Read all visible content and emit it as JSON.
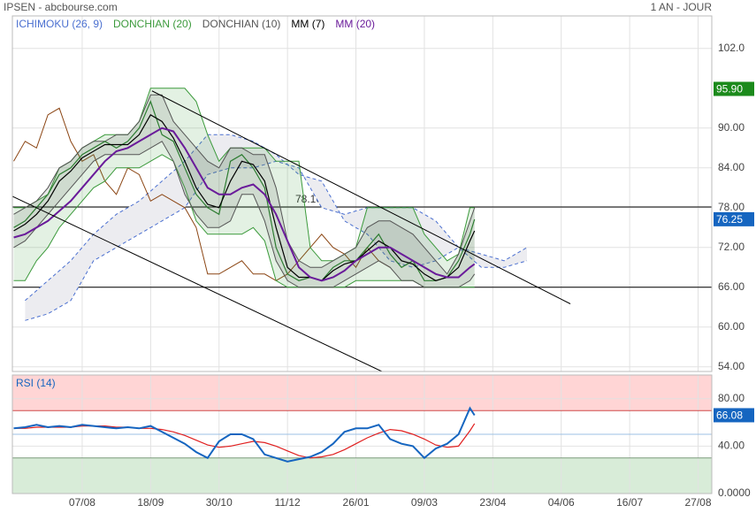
{
  "header": {
    "title": "IPSEN - abcbourse.com",
    "period": "1 AN - JOUR"
  },
  "chart_data": [
    {
      "type": "line",
      "xlim": [
        -30.6,
        276
      ],
      "ylim": [
        53.3,
        106.9
      ],
      "yticks": [
        {
          "value": 54,
          "label": "54.00"
        },
        {
          "value": 60,
          "label": "60.00"
        },
        {
          "value": 66,
          "label": "66.00"
        },
        {
          "value": 72,
          "label": "72.00"
        },
        {
          "value": 78,
          "label": "78.00"
        },
        {
          "value": 84,
          "label": "84.00"
        },
        {
          "value": 90,
          "label": "90.00"
        },
        {
          "value": 102,
          "label": "102.0"
        }
      ],
      "grid": true,
      "x": [
        -30,
        -25,
        -20,
        -15,
        -10,
        -5,
        0,
        5,
        10,
        15,
        20,
        25,
        30,
        35,
        40,
        45,
        50,
        55,
        60,
        65,
        70,
        75,
        80,
        85,
        90,
        95,
        100,
        105,
        110,
        115,
        120,
        125,
        130,
        135,
        140,
        145,
        150,
        155,
        160,
        165,
        170,
        172
      ],
      "series": [
        {
          "name": "ICHIMOKU (26, 9)",
          "kind": "cloud",
          "color": "#4a6fd0",
          "x": [
            -25,
            -15,
            -5,
            5,
            15,
            25,
            35,
            45,
            55,
            65,
            75,
            85,
            95,
            105,
            115,
            125,
            135,
            145,
            155,
            165,
            175,
            185,
            195
          ],
          "span_a": [
            64,
            67,
            70,
            74,
            77,
            79,
            82,
            85,
            89,
            89,
            88,
            86,
            83,
            82,
            76,
            74,
            70,
            69,
            70,
            72,
            71,
            70,
            72
          ],
          "span_b": [
            61,
            62,
            64,
            70,
            72,
            74,
            76,
            78,
            83,
            84,
            84,
            85,
            84,
            78,
            77,
            78,
            78,
            78,
            76,
            72,
            69,
            69,
            70
          ],
          "lagging": {
            "color": "#8b4513",
            "x": [
              -30,
              -25,
              -20,
              -15,
              -10,
              -5,
              0,
              5,
              10,
              15,
              20,
              25,
              30,
              35,
              40,
              45,
              50,
              55,
              60,
              65,
              70,
              75,
              80,
              85,
              90,
              95,
              100,
              105,
              110,
              115,
              120,
              125,
              130,
              135
            ],
            "values": [
              85,
              88,
              87,
              92,
              93,
              88,
              85,
              86,
              82,
              80,
              84,
              83,
              79,
              80,
              79,
              78,
              75,
              68,
              68,
              69,
              70,
              68,
              68,
              67,
              68,
              70,
              72,
              74,
              72,
              71,
              69,
              72,
              70,
              69
            ]
          }
        },
        {
          "name": "DONCHIAN (20)",
          "kind": "band",
          "color": "#3c9a3c",
          "upper": [
            78,
            78,
            79,
            80,
            84,
            85,
            87,
            88,
            89,
            89,
            89,
            91,
            96,
            96,
            96,
            96,
            94,
            89,
            85,
            87,
            87,
            87,
            87,
            85,
            85,
            85,
            72,
            70,
            70,
            71,
            72,
            78,
            78,
            78,
            78,
            78,
            74,
            72,
            70,
            71,
            78,
            78
          ],
          "lower": [
            67,
            67,
            70,
            72,
            75,
            77,
            79,
            81,
            82,
            84,
            84,
            84,
            85,
            86,
            85,
            81,
            76,
            74,
            74,
            74,
            74,
            75,
            73,
            67,
            66,
            66,
            66,
            66,
            66,
            66,
            67,
            67,
            67,
            67,
            67,
            67,
            66,
            66,
            66,
            66,
            66,
            66
          ]
        },
        {
          "name": "DONCHIAN (10)",
          "kind": "band",
          "color": "#555555",
          "upper": [
            77,
            78,
            79,
            81,
            84,
            85,
            87,
            88,
            88,
            89,
            89,
            91,
            95,
            95,
            91,
            89,
            87,
            85,
            84,
            87,
            87,
            86,
            86,
            81,
            73,
            70,
            69,
            69,
            70,
            71,
            72,
            75,
            76,
            76,
            75,
            74,
            72,
            70,
            68,
            71,
            76,
            78
          ],
          "lower": [
            72,
            73,
            75,
            77,
            79,
            81,
            83,
            85,
            86,
            86,
            86,
            86,
            87,
            88,
            85,
            80,
            77,
            75,
            75,
            76,
            80,
            80,
            76,
            70,
            67,
            66,
            66,
            66,
            66,
            67,
            68,
            69,
            70,
            69,
            67,
            67,
            66,
            66,
            66,
            66,
            67,
            68
          ]
        },
        {
          "kind": "line",
          "color": "#2e7d32",
          "values": [
            75,
            76,
            78,
            80,
            83,
            84,
            86,
            87,
            88,
            87,
            88,
            90,
            94,
            89,
            88,
            84,
            80,
            78,
            77,
            85,
            86,
            84,
            81,
            72,
            68,
            67,
            67.5,
            67,
            69,
            70,
            70,
            72,
            74,
            71,
            69,
            70,
            67,
            67,
            67.5,
            70,
            74,
            76.25
          ]
        },
        {
          "name": "MM (7)",
          "kind": "line",
          "color": "#000000",
          "values": [
            74.5,
            75.5,
            77,
            79,
            82,
            83.5,
            85.5,
            86.5,
            87.5,
            87.5,
            87.5,
            89,
            92,
            91,
            88.5,
            85,
            81,
            78.5,
            78,
            82,
            85,
            84.5,
            82,
            75,
            69,
            67.5,
            67.5,
            67,
            68.5,
            69.5,
            70,
            71.5,
            73,
            72,
            70,
            69.5,
            68,
            67,
            67.5,
            69,
            73,
            74.5
          ]
        },
        {
          "name": "MM (20)",
          "kind": "line",
          "color": "#6a1b9a",
          "width": 2,
          "values": [
            73.5,
            74,
            75,
            76,
            77.5,
            79,
            81,
            83,
            85,
            86.5,
            87,
            88,
            89,
            90,
            89.5,
            87,
            84,
            81,
            80,
            80,
            81,
            81.5,
            80,
            77,
            73,
            69,
            67.5,
            67,
            67.5,
            68.5,
            70,
            71,
            72,
            72,
            71,
            70,
            69,
            68,
            67.5,
            67.5,
            69,
            69.5
          ]
        }
      ],
      "hlines": [
        {
          "value": 78.1,
          "label": "78.10"
        },
        {
          "value": 66
        }
      ],
      "trendlines": [
        {
          "x": [
            30.6,
            214
          ],
          "y": [
            95.6,
            63.5
          ]
        },
        {
          "x": [
            -30.6,
            131.4
          ],
          "y": [
            79.7,
            53.3
          ]
        }
      ],
      "markers": [
        {
          "value": 95.9,
          "label": "95.90",
          "color": "#1b8a1b"
        },
        {
          "value": 76.25,
          "color": "#1565c0"
        }
      ]
    },
    {
      "type": "line",
      "xlim": [
        -30.6,
        276
      ],
      "ylim": [
        0,
        100
      ],
      "xticks": [
        {
          "value": 0,
          "label": "07/08"
        },
        {
          "value": 30,
          "label": "18/09"
        },
        {
          "value": 60,
          "label": "30/10"
        },
        {
          "value": 90,
          "label": "11/12"
        },
        {
          "value": 120,
          "label": "26/01"
        },
        {
          "value": 150,
          "label": "09/03"
        },
        {
          "value": 180,
          "label": "23/04"
        },
        {
          "value": 210,
          "label": "04/06"
        },
        {
          "value": 240,
          "label": "16/07"
        },
        {
          "value": 270,
          "label": "27/08"
        }
      ],
      "yticks": [
        {
          "value": 0,
          "label": "0.0000"
        },
        {
          "value": 40,
          "label": "40.00"
        },
        {
          "value": 80,
          "label": "80.00"
        }
      ],
      "grid": true,
      "x": [
        -30,
        -25,
        -20,
        -15,
        -10,
        -5,
        0,
        5,
        10,
        15,
        20,
        25,
        30,
        35,
        40,
        45,
        50,
        55,
        60,
        65,
        70,
        75,
        80,
        85,
        90,
        95,
        100,
        105,
        110,
        115,
        120,
        125,
        130,
        135,
        140,
        145,
        150,
        155,
        160,
        165,
        170,
        172
      ],
      "zones": [
        {
          "from": 70,
          "to": 100,
          "color": "#ffd5d5"
        },
        {
          "from": 0,
          "to": 30,
          "color": "#d8ecd8"
        }
      ],
      "hlines": [
        {
          "value": 70,
          "color": "#d04848"
        },
        {
          "value": 50,
          "color": "#9cc0e4"
        },
        {
          "value": 30,
          "color": "#7a9a7a"
        }
      ],
      "series": [
        {
          "kind": "line",
          "color": "#e02020",
          "values": [
            55,
            55,
            56,
            56,
            56,
            56,
            57,
            57,
            57,
            56,
            56,
            55,
            55,
            54,
            52,
            49,
            45,
            41,
            39,
            40,
            42,
            44,
            43,
            40,
            36,
            32,
            30,
            31,
            33,
            37,
            42,
            47,
            51,
            54,
            53,
            50,
            46,
            41,
            39,
            40,
            53,
            59
          ]
        },
        {
          "name": "RSI (14)",
          "kind": "line",
          "color": "#1565c0",
          "width": 2,
          "values": [
            55,
            56,
            58,
            56,
            57,
            56,
            58,
            57,
            56,
            55,
            56,
            55,
            57,
            52,
            47,
            42,
            35,
            30,
            44,
            50,
            50,
            46,
            33,
            30,
            27,
            29,
            31,
            35,
            42,
            52,
            55,
            55,
            58,
            46,
            42,
            40,
            30,
            38,
            42,
            50,
            72,
            66.08
          ]
        }
      ],
      "markers": [
        {
          "value": 66.08,
          "color": "#1565c0"
        }
      ]
    }
  ]
}
